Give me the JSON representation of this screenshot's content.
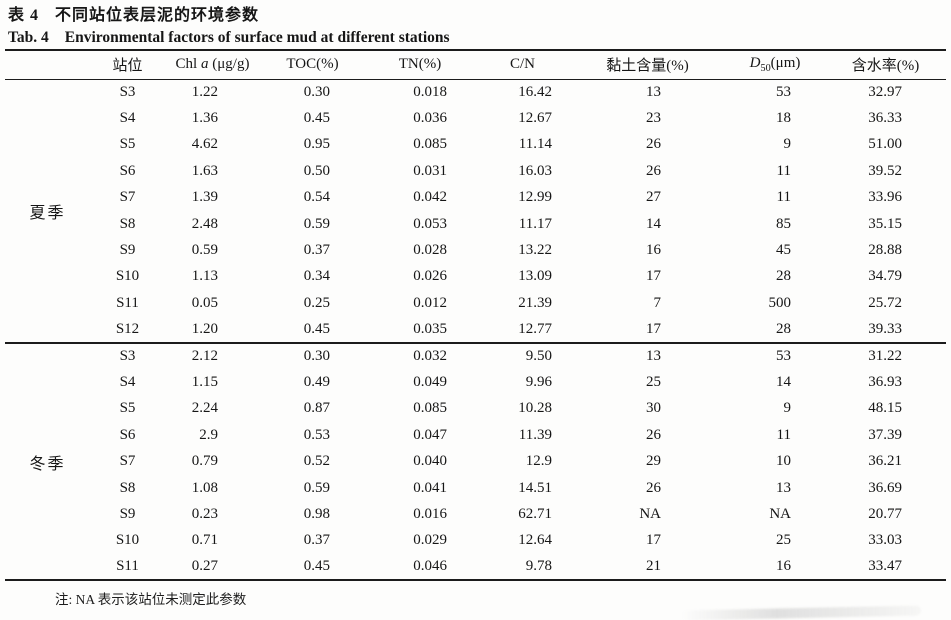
{
  "titles": {
    "zh_label": "表 4",
    "zh_text": "不同站位表层泥的环境参数",
    "en_label": "Tab. 4",
    "en_text": "Environmental factors of surface mud at different stations"
  },
  "table": {
    "columns": [
      {
        "key": "station",
        "segments": [
          {
            "text": "站位"
          }
        ]
      },
      {
        "key": "chl-a",
        "segments": [
          {
            "text": "Chl "
          },
          {
            "text": "a",
            "italic": true
          },
          {
            "text": " (μg/g)"
          }
        ]
      },
      {
        "key": "toc",
        "segments": [
          {
            "text": "TOC(%)"
          }
        ]
      },
      {
        "key": "tn",
        "segments": [
          {
            "text": "TN(%)"
          }
        ]
      },
      {
        "key": "c-n",
        "segments": [
          {
            "text": "C/N"
          }
        ]
      },
      {
        "key": "clay-content",
        "segments": [
          {
            "text": "黏土含量(%)"
          }
        ]
      },
      {
        "key": "d50",
        "segments": [
          {
            "text": "D",
            "italic": true
          },
          {
            "text": "50",
            "sub": true
          },
          {
            "text": "(μm)"
          }
        ]
      },
      {
        "key": "water-content",
        "segments": [
          {
            "text": "含水率(%)"
          }
        ]
      }
    ],
    "groups": [
      {
        "season": "夏季",
        "season_key": "summer",
        "rows": [
          [
            "S3",
            "1.22",
            "0.30",
            "0.018",
            "16.42",
            "13",
            "53",
            "32.97"
          ],
          [
            "S4",
            "1.36",
            "0.45",
            "0.036",
            "12.67",
            "23",
            "18",
            "36.33"
          ],
          [
            "S5",
            "4.62",
            "0.95",
            "0.085",
            "11.14",
            "26",
            "9",
            "51.00"
          ],
          [
            "S6",
            "1.63",
            "0.50",
            "0.031",
            "16.03",
            "26",
            "11",
            "39.52"
          ],
          [
            "S7",
            "1.39",
            "0.54",
            "0.042",
            "12.99",
            "27",
            "11",
            "33.96"
          ],
          [
            "S8",
            "2.48",
            "0.59",
            "0.053",
            "11.17",
            "14",
            "85",
            "35.15"
          ],
          [
            "S9",
            "0.59",
            "0.37",
            "0.028",
            "13.22",
            "16",
            "45",
            "28.88"
          ],
          [
            "S10",
            "1.13",
            "0.34",
            "0.026",
            "13.09",
            "17",
            "28",
            "34.79"
          ],
          [
            "S11",
            "0.05",
            "0.25",
            "0.012",
            "21.39",
            "7",
            "500",
            "25.72"
          ],
          [
            "S12",
            "1.20",
            "0.45",
            "0.035",
            "12.77",
            "17",
            "28",
            "39.33"
          ]
        ]
      },
      {
        "season": "冬季",
        "season_key": "winter",
        "rows": [
          [
            "S3",
            "2.12",
            "0.30",
            "0.032",
            "9.50",
            "13",
            "53",
            "31.22"
          ],
          [
            "S4",
            "1.15",
            "0.49",
            "0.049",
            "9.96",
            "25",
            "14",
            "36.93"
          ],
          [
            "S5",
            "2.24",
            "0.87",
            "0.085",
            "10.28",
            "30",
            "9",
            "48.15"
          ],
          [
            "S6",
            "2.9",
            "0.53",
            "0.047",
            "11.39",
            "26",
            "11",
            "37.39"
          ],
          [
            "S7",
            "0.79",
            "0.52",
            "0.040",
            "12.9",
            "29",
            "10",
            "36.21"
          ],
          [
            "S8",
            "1.08",
            "0.59",
            "0.041",
            "14.51",
            "26",
            "13",
            "36.69"
          ],
          [
            "S9",
            "0.23",
            "0.98",
            "0.016",
            "62.71",
            "NA",
            "NA",
            "20.77"
          ],
          [
            "S10",
            "0.71",
            "0.37",
            "0.029",
            "12.64",
            "17",
            "25",
            "33.03"
          ],
          [
            "S11",
            "0.27",
            "0.45",
            "0.046",
            "9.78",
            "21",
            "16",
            "33.47"
          ]
        ]
      }
    ]
  },
  "footnote": "注: NA 表示该站位未测定此参数"
}
